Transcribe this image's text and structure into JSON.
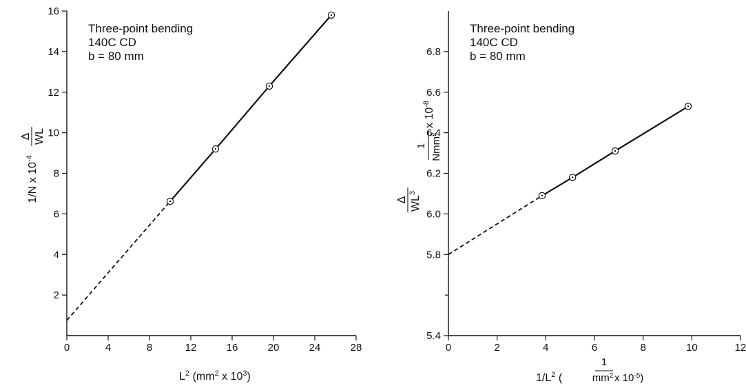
{
  "chart_data": [
    {
      "type": "line",
      "annotation": [
        "Three-point bending",
        "140C CD",
        "b = 80 mm"
      ],
      "xlabel": {
        "base": "L",
        "sup": "2",
        "rest_open": " (mm",
        "rest_sup": "2",
        "rest_mid": " x 10",
        "rest_sup2": "3",
        "rest_close": ")"
      },
      "ylabel": {
        "frac_num": "Δ",
        "frac_den": "WL",
        "units": "1/N x 10",
        "units_sup": "-4"
      },
      "xlim": [
        0,
        28
      ],
      "ylim": [
        0,
        16
      ],
      "xticks": [
        "0",
        "4",
        "8",
        "12",
        "16",
        "20",
        "24",
        "28"
      ],
      "yticks": [
        "2",
        "4",
        "6",
        "8",
        "10",
        "12",
        "14",
        "16"
      ],
      "ytick_values": [
        2,
        4,
        6,
        8,
        10,
        12,
        14,
        16
      ],
      "xtick_values": [
        0,
        4,
        8,
        12,
        16,
        20,
        24,
        28
      ],
      "points": [
        {
          "x": 10.0,
          "y": 6.62
        },
        {
          "x": 14.4,
          "y": 9.2
        },
        {
          "x": 19.6,
          "y": 12.3
        },
        {
          "x": 25.6,
          "y": 15.8
        }
      ],
      "dashed_extrapolation": {
        "from_x": 0,
        "from_y": 0.75,
        "to_x": 10.0,
        "to_y": 6.62
      },
      "grid": false
    },
    {
      "type": "line",
      "annotation": [
        "Three-point bending",
        "140C CD",
        "b = 80 mm"
      ],
      "xlabel": {
        "base": "1/L",
        "sup": "2",
        "open": " (",
        "frac_num": "1",
        "frac_den": "mm",
        "frac_den_sup": "2",
        "rest": " x 10",
        "rest_sup": "-5",
        "close": ")"
      },
      "ylabel": {
        "frac_num": "Δ",
        "frac_den": "WL",
        "frac_den_sup": "3",
        "units_num": "1",
        "units_den": "Nmm",
        "units_den_sup": "2",
        "units_rest": " x 10",
        "units_sup": "-8"
      },
      "xlim": [
        0,
        12
      ],
      "ylim": [
        5.4,
        7.0
      ],
      "xticks": [
        "0",
        "2",
        "4",
        "6",
        "8",
        "10",
        "12"
      ],
      "yticks": [
        "5.4",
        "5.8",
        "6.0",
        "6.2",
        "6.4",
        "6.6",
        "6.8"
      ],
      "ytick_values": [
        5.4,
        5.8,
        6.0,
        6.2,
        6.4,
        6.6,
        6.8
      ],
      "xtick_values": [
        0,
        2,
        4,
        6,
        8,
        10,
        12
      ],
      "minor_yticks": [
        5.6
      ],
      "points": [
        {
          "x": 3.85,
          "y": 6.09
        },
        {
          "x": 5.1,
          "y": 6.18
        },
        {
          "x": 6.85,
          "y": 6.31
        },
        {
          "x": 9.85,
          "y": 6.53
        }
      ],
      "dashed_extrapolation": {
        "from_x": 0,
        "from_y": 5.8,
        "to_x": 3.85,
        "to_y": 6.09
      },
      "grid": false
    }
  ]
}
